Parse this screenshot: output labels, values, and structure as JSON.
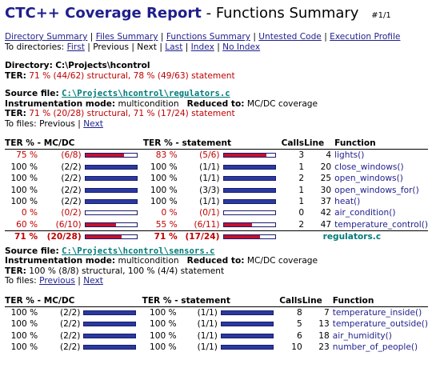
{
  "header": {
    "title_main": "CTC++ Coverage Report",
    "title_dash": "-",
    "title_sub": "Functions Summary",
    "page_indicator": "#1/1"
  },
  "nav": {
    "links": [
      "Directory Summary",
      "Files Summary",
      "Functions Summary",
      "Untested Code",
      "Execution Profile"
    ],
    "dir_label": "To directories:",
    "dir_first": "First",
    "dir_previous": "Previous",
    "dir_next": "Next",
    "dir_last": "Last",
    "dir_index": "Index",
    "dir_noindex": "No Index"
  },
  "directory": {
    "label": "Directory:",
    "path": "C:\\Projects\\hcontrol",
    "ter_label": "TER:",
    "ter": "71 % (44/62) structural, 78 % (49/63) statement"
  },
  "files": [
    {
      "source_label": "Source file:",
      "path": "C:\\Projects\\hcontrol\\regulators.c",
      "mode_label": "Instrumentation mode:",
      "mode": "multicondition",
      "reduced_label": "Reduced to:",
      "reduced": "MC/DC coverage",
      "ter_label": "TER:",
      "ter": "71 % (20/28) structural, 71 % (17/24) statement",
      "ter_red": true,
      "tofiles_label": "To files:",
      "tofiles_prev": "Previous",
      "tofiles_prev_link": false,
      "tofiles_next": "Next",
      "columns": [
        "TER % - MC/DC",
        "TER % - statement",
        "Calls",
        "Line",
        "Function"
      ],
      "rows": [
        {
          "mcdc_pct": "75 %",
          "mcdc_frac": "(6/8)",
          "mcdc_val": 0.75,
          "stmt_pct": "83 %",
          "stmt_frac": "(5/6)",
          "stmt_val": 0.83,
          "calls": "3",
          "line": "4",
          "function": "lights()",
          "red": true
        },
        {
          "mcdc_pct": "100 %",
          "mcdc_frac": "(2/2)",
          "mcdc_val": 1.0,
          "stmt_pct": "100 %",
          "stmt_frac": "(1/1)",
          "stmt_val": 1.0,
          "calls": "1",
          "line": "20",
          "function": "close_windows()",
          "red": false
        },
        {
          "mcdc_pct": "100 %",
          "mcdc_frac": "(2/2)",
          "mcdc_val": 1.0,
          "stmt_pct": "100 %",
          "stmt_frac": "(1/1)",
          "stmt_val": 1.0,
          "calls": "2",
          "line": "25",
          "function": "open_windows()",
          "red": false
        },
        {
          "mcdc_pct": "100 %",
          "mcdc_frac": "(2/2)",
          "mcdc_val": 1.0,
          "stmt_pct": "100 %",
          "stmt_frac": "(3/3)",
          "stmt_val": 1.0,
          "calls": "1",
          "line": "30",
          "function": "open_windows_for()",
          "red": false
        },
        {
          "mcdc_pct": "100 %",
          "mcdc_frac": "(2/2)",
          "mcdc_val": 1.0,
          "stmt_pct": "100 %",
          "stmt_frac": "(1/1)",
          "stmt_val": 1.0,
          "calls": "1",
          "line": "37",
          "function": "heat()",
          "red": false
        },
        {
          "mcdc_pct": "0 %",
          "mcdc_frac": "(0/2)",
          "mcdc_val": 0.0,
          "stmt_pct": "0 %",
          "stmt_frac": "(0/1)",
          "stmt_val": 0.0,
          "calls": "0",
          "line": "42",
          "function": "air_condition()",
          "red": true
        },
        {
          "mcdc_pct": "60 %",
          "mcdc_frac": "(6/10)",
          "mcdc_val": 0.6,
          "stmt_pct": "55 %",
          "stmt_frac": "(6/11)",
          "stmt_val": 0.55,
          "calls": "2",
          "line": "47",
          "function": "temperature_control()",
          "red": true
        }
      ],
      "total": {
        "mcdc_pct": "71 %",
        "mcdc_frac": "(20/28)",
        "mcdc_val": 0.71,
        "stmt_pct": "71 %",
        "stmt_frac": "(17/24)",
        "stmt_val": 0.71,
        "file": "regulators.c",
        "red": true
      }
    },
    {
      "source_label": "Source file:",
      "path": "C:\\Projects\\hcontrol\\sensors.c",
      "mode_label": "Instrumentation mode:",
      "mode": "multicondition",
      "reduced_label": "Reduced to:",
      "reduced": "MC/DC coverage",
      "ter_label": "TER:",
      "ter": "100 % (8/8) structural, 100 % (4/4) statement",
      "ter_red": false,
      "tofiles_label": "To files:",
      "tofiles_prev": "Previous",
      "tofiles_prev_link": true,
      "tofiles_next": "Next",
      "columns": [
        "TER % - MC/DC",
        "TER % - statement",
        "Calls",
        "Line",
        "Function"
      ],
      "rows": [
        {
          "mcdc_pct": "100 %",
          "mcdc_frac": "(2/2)",
          "mcdc_val": 1.0,
          "stmt_pct": "100 %",
          "stmt_frac": "(1/1)",
          "stmt_val": 1.0,
          "calls": "8",
          "line": "7",
          "function": "temperature_inside()",
          "red": false
        },
        {
          "mcdc_pct": "100 %",
          "mcdc_frac": "(2/2)",
          "mcdc_val": 1.0,
          "stmt_pct": "100 %",
          "stmt_frac": "(1/1)",
          "stmt_val": 1.0,
          "calls": "5",
          "line": "13",
          "function": "temperature_outside()",
          "red": false
        },
        {
          "mcdc_pct": "100 %",
          "mcdc_frac": "(2/2)",
          "mcdc_val": 1.0,
          "stmt_pct": "100 %",
          "stmt_frac": "(1/1)",
          "stmt_val": 1.0,
          "calls": "6",
          "line": "18",
          "function": "air_humidity()",
          "red": false
        },
        {
          "mcdc_pct": "100 %",
          "mcdc_frac": "(2/2)",
          "mcdc_val": 1.0,
          "stmt_pct": "100 %",
          "stmt_frac": "(1/1)",
          "stmt_val": 1.0,
          "calls": "10",
          "line": "23",
          "function": "number_of_people()",
          "red": false
        }
      ]
    }
  ],
  "colors": {
    "bar_ok": "#2a3a9e",
    "bar_bad": "#c8102e",
    "bar_border": "#1a1a6e",
    "text_red": "#c00000",
    "link": "#1f1f8c",
    "teal": "#007a7a"
  }
}
